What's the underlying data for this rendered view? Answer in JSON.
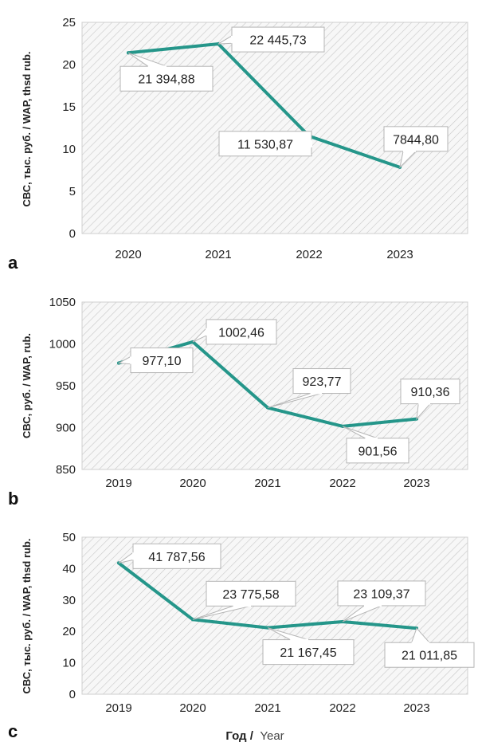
{
  "accent_color": "#25968a",
  "chart_data": [
    {
      "panel": "a",
      "type": "line",
      "ylabel": "СВС, тыс. руб. / WAP, thsd rub.",
      "categories": [
        "2020",
        "2021",
        "2022",
        "2023"
      ],
      "values": [
        21.39488,
        22.44573,
        11.53087,
        7.8448
      ],
      "data_labels": [
        "21 394,88",
        "22 445,73",
        "11 530,87",
        "7844,80"
      ],
      "ylim": [
        0,
        25
      ],
      "yticks": [
        0,
        5,
        10,
        15,
        20,
        25
      ],
      "grid": true
    },
    {
      "panel": "b",
      "type": "line",
      "ylabel": "СВС, руб. / WAP, rub.",
      "categories": [
        "2019",
        "2020",
        "2021",
        "2022",
        "2023"
      ],
      "values": [
        977.1,
        1002.46,
        923.77,
        901.56,
        910.36
      ],
      "data_labels": [
        "977,10",
        "1002,46",
        "923,77",
        "901,56",
        "910,36"
      ],
      "ylim": [
        850,
        1050
      ],
      "yticks": [
        850,
        900,
        950,
        1000,
        1050
      ],
      "grid": true
    },
    {
      "panel": "c",
      "type": "line",
      "ylabel": "СВС, тыс. руб. / WAP, thsd rub.",
      "categories": [
        "2019",
        "2020",
        "2021",
        "2022",
        "2023"
      ],
      "values": [
        41.78756,
        23.77558,
        21.16745,
        23.10937,
        21.01185
      ],
      "data_labels": [
        "41 787,56",
        "23 775,58",
        "21 167,45",
        "23 109,37",
        "21 011,85"
      ],
      "ylim": [
        0,
        50
      ],
      "yticks": [
        0,
        10,
        20,
        30,
        40,
        50
      ],
      "grid": true
    }
  ],
  "xaxis_title": {
    "ru": "Год /",
    "en": "Year"
  }
}
